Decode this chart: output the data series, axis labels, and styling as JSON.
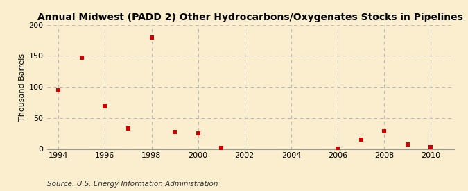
{
  "title": "Annual Midwest (PADD 2) Other Hydrocarbons/Oxygenates Stocks in Pipelines",
  "ylabel": "Thousand Barrels",
  "source": "Source: U.S. Energy Information Administration",
  "x": [
    1994,
    1995,
    1996,
    1997,
    1998,
    1999,
    2000,
    2001,
    2006,
    2007,
    2008,
    2009,
    2010
  ],
  "y": [
    95,
    147,
    69,
    33,
    180,
    27,
    25,
    2,
    1,
    15,
    29,
    7,
    3
  ],
  "xlim": [
    1993.5,
    2011.0
  ],
  "ylim": [
    0,
    200
  ],
  "yticks": [
    0,
    50,
    100,
    150,
    200
  ],
  "xticks": [
    1994,
    1996,
    1998,
    2000,
    2002,
    2004,
    2006,
    2008,
    2010
  ],
  "marker_color": "#cc0000",
  "marker": "s",
  "marker_size": 4,
  "bg_color": "#faeece",
  "grid_color": "#bbbbbb",
  "grid_linestyle": "--",
  "title_fontsize": 10,
  "label_fontsize": 8,
  "tick_fontsize": 8,
  "source_fontsize": 7.5
}
